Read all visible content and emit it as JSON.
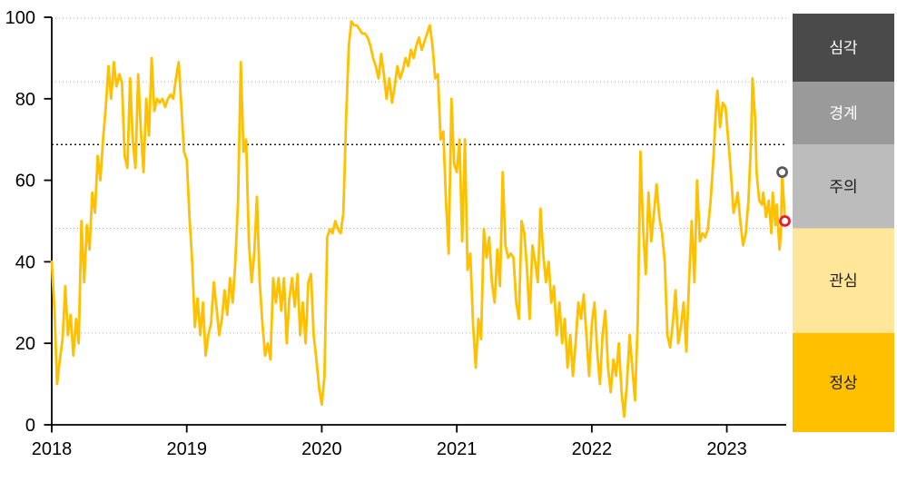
{
  "chart_data": {
    "type": "line",
    "title": "",
    "xlabel": "",
    "ylabel": "",
    "xlim": [
      2018,
      2023.44
    ],
    "ylim": [
      0,
      100
    ],
    "grid": "horizontal-dotted",
    "legend_position": "right-band-column",
    "x_ticks": [
      2018,
      2019,
      2020,
      2021,
      2022,
      2023
    ],
    "y_ticks": [
      0,
      20,
      40,
      60,
      80,
      100
    ],
    "gridlines": [
      {
        "value": 100,
        "emphasis": false
      },
      {
        "value": 85,
        "emphasis": false
      },
      {
        "value": 70,
        "emphasis": true
      },
      {
        "value": 50,
        "emphasis": false
      },
      {
        "value": 25,
        "emphasis": false
      }
    ],
    "series": [
      {
        "name": "risk-index",
        "color": "#FFC000",
        "points": [
          [
            2018.0,
            40
          ],
          [
            2018.02,
            28
          ],
          [
            2018.04,
            10
          ],
          [
            2018.06,
            16
          ],
          [
            2018.08,
            21
          ],
          [
            2018.1,
            34
          ],
          [
            2018.12,
            22
          ],
          [
            2018.14,
            27
          ],
          [
            2018.16,
            17
          ],
          [
            2018.18,
            26
          ],
          [
            2018.2,
            20
          ],
          [
            2018.22,
            50
          ],
          [
            2018.24,
            35
          ],
          [
            2018.26,
            49
          ],
          [
            2018.28,
            43
          ],
          [
            2018.3,
            57
          ],
          [
            2018.32,
            52
          ],
          [
            2018.34,
            66
          ],
          [
            2018.36,
            60
          ],
          [
            2018.38,
            70
          ],
          [
            2018.4,
            78
          ],
          [
            2018.42,
            88
          ],
          [
            2018.44,
            80
          ],
          [
            2018.46,
            89
          ],
          [
            2018.48,
            83
          ],
          [
            2018.5,
            86
          ],
          [
            2018.52,
            84
          ],
          [
            2018.54,
            66
          ],
          [
            2018.56,
            63
          ],
          [
            2018.58,
            85
          ],
          [
            2018.6,
            70
          ],
          [
            2018.62,
            63
          ],
          [
            2018.64,
            86
          ],
          [
            2018.66,
            72
          ],
          [
            2018.68,
            62
          ],
          [
            2018.7,
            80
          ],
          [
            2018.72,
            71
          ],
          [
            2018.74,
            90
          ],
          [
            2018.76,
            77
          ],
          [
            2018.78,
            80
          ],
          [
            2018.8,
            79
          ],
          [
            2018.82,
            80
          ],
          [
            2018.84,
            78
          ],
          [
            2018.86,
            80
          ],
          [
            2018.88,
            81
          ],
          [
            2018.9,
            80
          ],
          [
            2018.92,
            85
          ],
          [
            2018.94,
            89
          ],
          [
            2018.96,
            78
          ],
          [
            2018.98,
            67
          ],
          [
            2019.0,
            65
          ],
          [
            2019.02,
            51
          ],
          [
            2019.04,
            40
          ],
          [
            2019.06,
            24
          ],
          [
            2019.08,
            31
          ],
          [
            2019.1,
            22
          ],
          [
            2019.12,
            30
          ],
          [
            2019.14,
            17
          ],
          [
            2019.16,
            22
          ],
          [
            2019.18,
            25
          ],
          [
            2019.2,
            35
          ],
          [
            2019.22,
            29
          ],
          [
            2019.24,
            22
          ],
          [
            2019.26,
            26
          ],
          [
            2019.28,
            33
          ],
          [
            2019.3,
            27
          ],
          [
            2019.32,
            36
          ],
          [
            2019.34,
            30
          ],
          [
            2019.36,
            40
          ],
          [
            2019.38,
            55
          ],
          [
            2019.4,
            89
          ],
          [
            2019.42,
            67
          ],
          [
            2019.44,
            70
          ],
          [
            2019.46,
            45
          ],
          [
            2019.48,
            35
          ],
          [
            2019.5,
            42
          ],
          [
            2019.52,
            56
          ],
          [
            2019.54,
            35
          ],
          [
            2019.56,
            25
          ],
          [
            2019.58,
            17
          ],
          [
            2019.6,
            20
          ],
          [
            2019.62,
            16
          ],
          [
            2019.64,
            36
          ],
          [
            2019.66,
            30
          ],
          [
            2019.68,
            36
          ],
          [
            2019.7,
            28
          ],
          [
            2019.72,
            36
          ],
          [
            2019.74,
            20
          ],
          [
            2019.76,
            31
          ],
          [
            2019.78,
            36
          ],
          [
            2019.8,
            29
          ],
          [
            2019.82,
            37
          ],
          [
            2019.84,
            22
          ],
          [
            2019.86,
            30
          ],
          [
            2019.88,
            20
          ],
          [
            2019.9,
            35
          ],
          [
            2019.92,
            37
          ],
          [
            2019.94,
            22
          ],
          [
            2019.96,
            16
          ],
          [
            2019.98,
            9
          ],
          [
            2020.0,
            5
          ],
          [
            2020.02,
            12
          ],
          [
            2020.04,
            46
          ],
          [
            2020.06,
            48
          ],
          [
            2020.08,
            47
          ],
          [
            2020.1,
            50
          ],
          [
            2020.12,
            48
          ],
          [
            2020.14,
            47
          ],
          [
            2020.16,
            52
          ],
          [
            2020.18,
            75
          ],
          [
            2020.2,
            93
          ],
          [
            2020.22,
            99
          ],
          [
            2020.24,
            98
          ],
          [
            2020.26,
            98
          ],
          [
            2020.28,
            97
          ],
          [
            2020.3,
            96
          ],
          [
            2020.32,
            96
          ],
          [
            2020.34,
            95
          ],
          [
            2020.36,
            93
          ],
          [
            2020.38,
            90
          ],
          [
            2020.4,
            88
          ],
          [
            2020.42,
            85
          ],
          [
            2020.44,
            91
          ],
          [
            2020.46,
            86
          ],
          [
            2020.48,
            80
          ],
          [
            2020.5,
            85
          ],
          [
            2020.52,
            79
          ],
          [
            2020.54,
            83
          ],
          [
            2020.56,
            88
          ],
          [
            2020.58,
            85
          ],
          [
            2020.6,
            87
          ],
          [
            2020.62,
            90
          ],
          [
            2020.64,
            88
          ],
          [
            2020.66,
            92
          ],
          [
            2020.68,
            90
          ],
          [
            2020.7,
            93
          ],
          [
            2020.72,
            95
          ],
          [
            2020.74,
            92
          ],
          [
            2020.76,
            94
          ],
          [
            2020.78,
            96
          ],
          [
            2020.8,
            98
          ],
          [
            2020.82,
            93
          ],
          [
            2020.84,
            85
          ],
          [
            2020.86,
            86
          ],
          [
            2020.88,
            70
          ],
          [
            2020.9,
            72
          ],
          [
            2020.92,
            55
          ],
          [
            2020.94,
            42
          ],
          [
            2020.96,
            80
          ],
          [
            2020.98,
            64
          ],
          [
            2021.0,
            62
          ],
          [
            2021.02,
            70
          ],
          [
            2021.04,
            45
          ],
          [
            2021.06,
            70
          ],
          [
            2021.08,
            38
          ],
          [
            2021.1,
            42
          ],
          [
            2021.12,
            25
          ],
          [
            2021.14,
            14
          ],
          [
            2021.16,
            26
          ],
          [
            2021.18,
            21
          ],
          [
            2021.2,
            48
          ],
          [
            2021.22,
            41
          ],
          [
            2021.24,
            46
          ],
          [
            2021.26,
            35
          ],
          [
            2021.28,
            30
          ],
          [
            2021.3,
            43
          ],
          [
            2021.32,
            34
          ],
          [
            2021.34,
            62
          ],
          [
            2021.36,
            44
          ],
          [
            2021.38,
            41
          ],
          [
            2021.4,
            42
          ],
          [
            2021.42,
            41
          ],
          [
            2021.44,
            30
          ],
          [
            2021.46,
            26
          ],
          [
            2021.48,
            50
          ],
          [
            2021.5,
            47
          ],
          [
            2021.52,
            38
          ],
          [
            2021.54,
            26
          ],
          [
            2021.56,
            44
          ],
          [
            2021.58,
            40
          ],
          [
            2021.6,
            35
          ],
          [
            2021.62,
            53
          ],
          [
            2021.64,
            42
          ],
          [
            2021.66,
            35
          ],
          [
            2021.68,
            40
          ],
          [
            2021.7,
            30
          ],
          [
            2021.72,
            34
          ],
          [
            2021.74,
            22
          ],
          [
            2021.76,
            30
          ],
          [
            2021.78,
            20
          ],
          [
            2021.8,
            26
          ],
          [
            2021.82,
            14
          ],
          [
            2021.84,
            22
          ],
          [
            2021.86,
            12
          ],
          [
            2021.88,
            20
          ],
          [
            2021.9,
            30
          ],
          [
            2021.92,
            26
          ],
          [
            2021.94,
            32
          ],
          [
            2021.96,
            22
          ],
          [
            2021.98,
            12
          ],
          [
            2022.0,
            25
          ],
          [
            2022.02,
            30
          ],
          [
            2022.04,
            18
          ],
          [
            2022.06,
            10
          ],
          [
            2022.08,
            22
          ],
          [
            2022.1,
            28
          ],
          [
            2022.12,
            14
          ],
          [
            2022.14,
            8
          ],
          [
            2022.16,
            16
          ],
          [
            2022.18,
            12
          ],
          [
            2022.2,
            20
          ],
          [
            2022.22,
            8
          ],
          [
            2022.24,
            2
          ],
          [
            2022.26,
            10
          ],
          [
            2022.28,
            22
          ],
          [
            2022.3,
            14
          ],
          [
            2022.32,
            6
          ],
          [
            2022.34,
            25
          ],
          [
            2022.36,
            67
          ],
          [
            2022.38,
            48
          ],
          [
            2022.4,
            37
          ],
          [
            2022.42,
            57
          ],
          [
            2022.44,
            45
          ],
          [
            2022.46,
            52
          ],
          [
            2022.48,
            59
          ],
          [
            2022.5,
            51
          ],
          [
            2022.52,
            47
          ],
          [
            2022.54,
            40
          ],
          [
            2022.56,
            22
          ],
          [
            2022.58,
            19
          ],
          [
            2022.6,
            25
          ],
          [
            2022.62,
            33
          ],
          [
            2022.64,
            20
          ],
          [
            2022.66,
            24
          ],
          [
            2022.68,
            30
          ],
          [
            2022.7,
            18
          ],
          [
            2022.72,
            35
          ],
          [
            2022.74,
            50
          ],
          [
            2022.76,
            35
          ],
          [
            2022.78,
            60
          ],
          [
            2022.8,
            45
          ],
          [
            2022.82,
            47
          ],
          [
            2022.84,
            46
          ],
          [
            2022.86,
            48
          ],
          [
            2022.88,
            55
          ],
          [
            2022.9,
            65
          ],
          [
            2022.92,
            78
          ],
          [
            2022.93,
            82
          ],
          [
            2022.95,
            73
          ],
          [
            2022.97,
            79
          ],
          [
            2022.99,
            78
          ],
          [
            2023.01,
            70
          ],
          [
            2023.03,
            62
          ],
          [
            2023.05,
            52
          ],
          [
            2023.07,
            55
          ],
          [
            2023.08,
            57
          ],
          [
            2023.1,
            50
          ],
          [
            2023.12,
            44
          ],
          [
            2023.14,
            47
          ],
          [
            2023.16,
            55
          ],
          [
            2023.18,
            70
          ],
          [
            2023.19,
            85
          ],
          [
            2023.21,
            75
          ],
          [
            2023.22,
            62
          ],
          [
            2023.24,
            55
          ],
          [
            2023.26,
            54
          ],
          [
            2023.27,
            57
          ],
          [
            2023.29,
            51
          ],
          [
            2023.31,
            55
          ],
          [
            2023.33,
            47
          ],
          [
            2023.34,
            57
          ],
          [
            2023.36,
            49
          ],
          [
            2023.37,
            54
          ],
          [
            2023.39,
            43
          ],
          [
            2023.4,
            47
          ],
          [
            2023.41,
            62
          ],
          [
            2023.43,
            50
          ]
        ]
      }
    ],
    "end_markers": [
      {
        "name": "previous-point-marker",
        "x": 2023.41,
        "y": 62,
        "stroke": "#58595B"
      },
      {
        "name": "latest-point-marker",
        "x": 2023.43,
        "y": 50,
        "stroke": "#ED1C24"
      }
    ],
    "legend_bands": [
      {
        "label": "심각",
        "range": [
          85,
          100
        ],
        "color": "#4A4A4A",
        "text_color": "#FFFFFF"
      },
      {
        "label": "경계",
        "range": [
          70,
          85
        ],
        "color": "#9A9A9A",
        "text_color": "#FFFFFF"
      },
      {
        "label": "주의",
        "range": [
          50,
          70
        ],
        "color": "#BCBCBC",
        "text_color": "#1A1A1A"
      },
      {
        "label": "관심",
        "range": [
          25,
          50
        ],
        "color": "#FFE699",
        "text_color": "#1A1A1A"
      },
      {
        "label": "정상",
        "range": [
          0,
          25
        ],
        "color": "#FFC000",
        "text_color": "#1A1A1A"
      }
    ],
    "colors": {
      "line": "#FFC000",
      "axis": "#000000",
      "grid_light": "#AFAFAF",
      "grid_dark": "#1A1A1A",
      "tick_label": "#000000"
    }
  }
}
